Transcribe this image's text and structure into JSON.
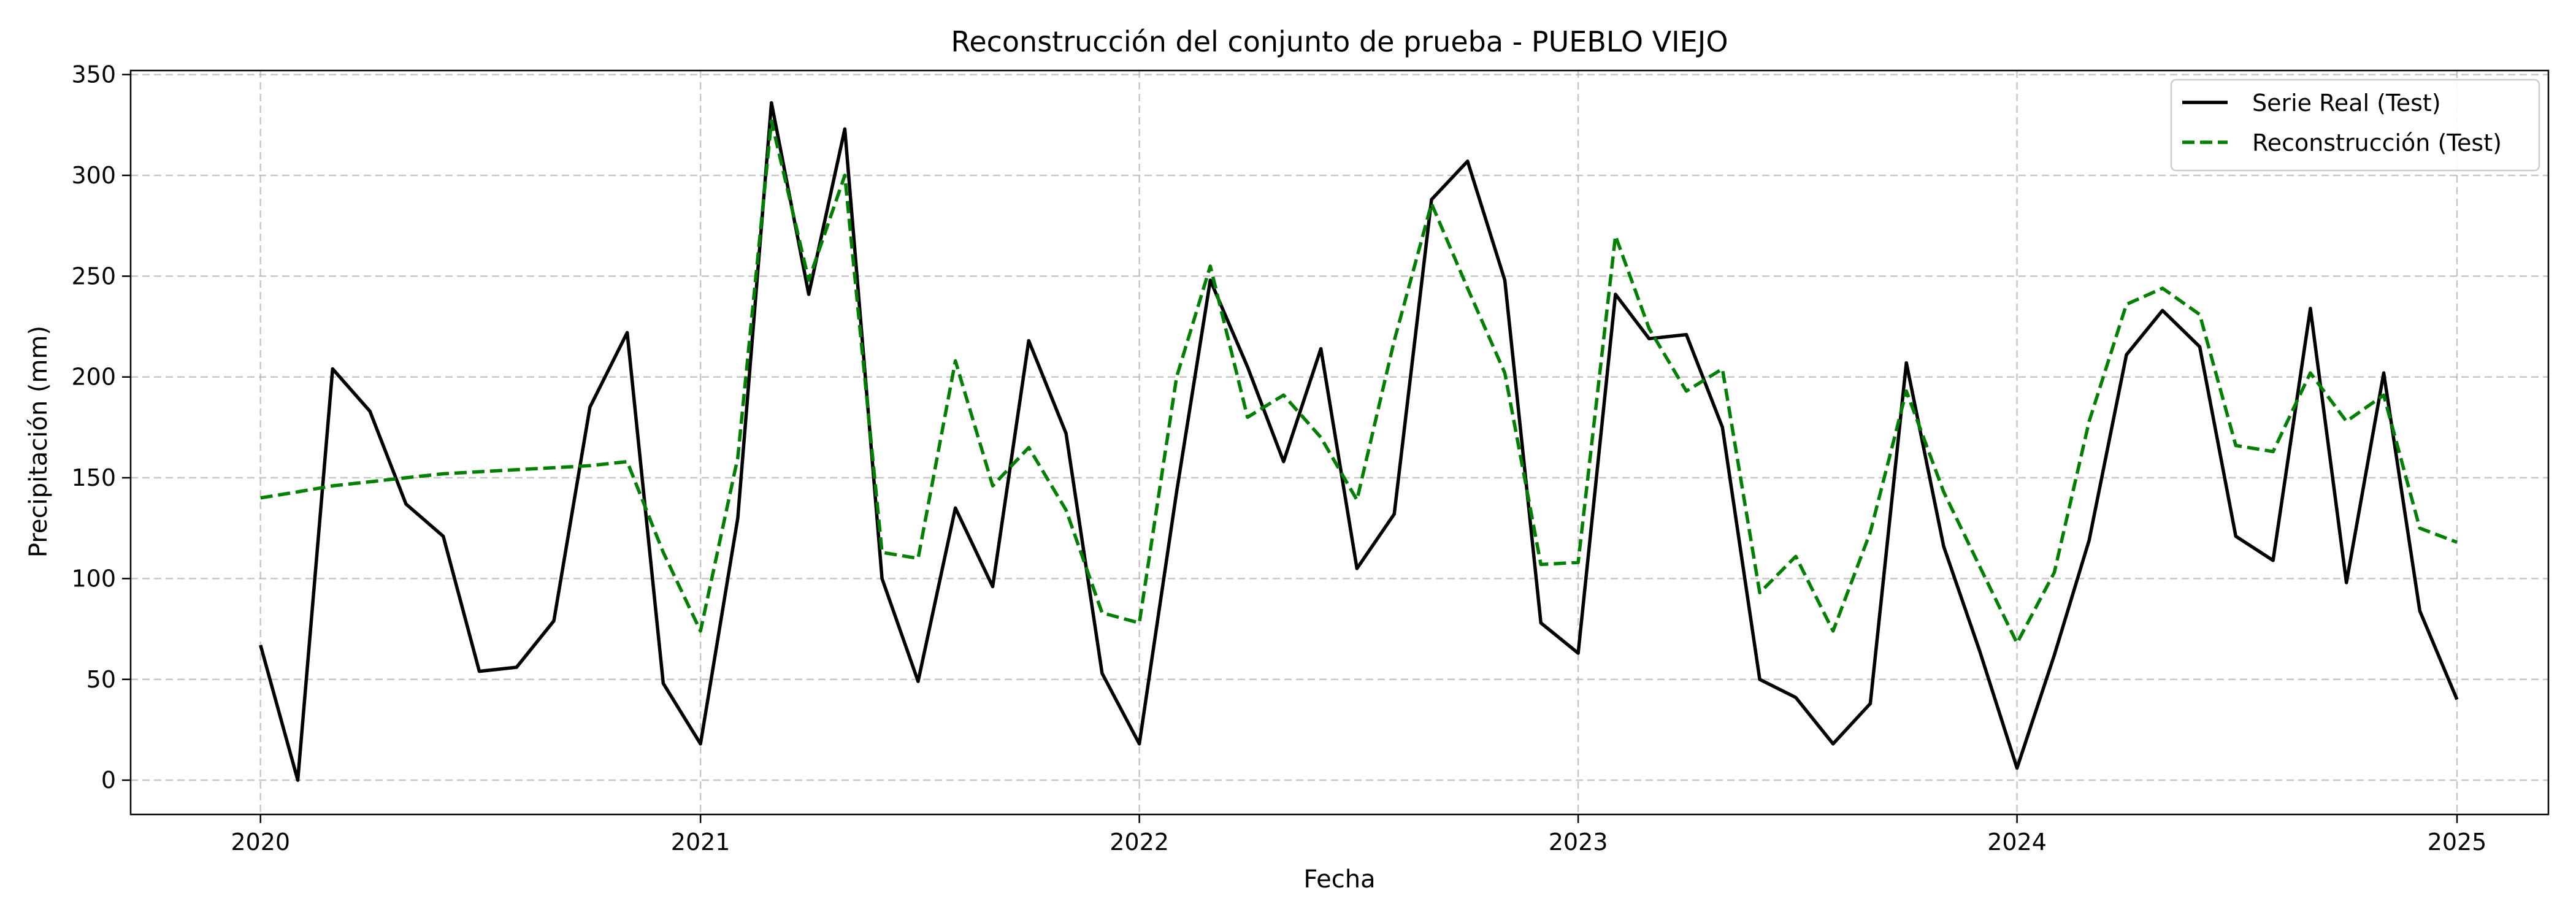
{
  "chart_data": {
    "type": "line",
    "title": "Reconstrucción del conjunto de prueba - PUEBLO VIEJO",
    "xlabel": "Fecha",
    "ylabel": "Precipitación (mm)",
    "x_axis": {
      "type": "date",
      "range": [
        "2019-09-15",
        "2025-03-18"
      ],
      "ticks": [
        "2020",
        "2021",
        "2022",
        "2023",
        "2024",
        "2025"
      ],
      "tick_dates": [
        "2020-01-01",
        "2021-01-01",
        "2022-01-01",
        "2023-01-01",
        "2024-01-01",
        "2025-01-01"
      ]
    },
    "ylim": [
      -17,
      352
    ],
    "yticks": [
      0,
      50,
      100,
      150,
      200,
      250,
      300,
      350
    ],
    "grid": true,
    "legend_position": "upper right",
    "x": [
      "2020-01",
      "2020-02",
      "2020-03",
      "2020-04",
      "2020-05",
      "2020-06",
      "2020-07",
      "2020-08",
      "2020-09",
      "2020-10",
      "2020-11",
      "2020-12",
      "2021-01",
      "2021-02",
      "2021-03",
      "2021-04",
      "2021-05",
      "2021-06",
      "2021-07",
      "2021-08",
      "2021-09",
      "2021-10",
      "2021-11",
      "2021-12",
      "2022-01",
      "2022-02",
      "2022-03",
      "2022-04",
      "2022-05",
      "2022-06",
      "2022-07",
      "2022-08",
      "2022-09",
      "2022-10",
      "2022-11",
      "2022-12",
      "2023-01",
      "2023-02",
      "2023-03",
      "2023-04",
      "2023-05",
      "2023-06",
      "2023-07",
      "2023-08",
      "2023-09",
      "2023-10",
      "2023-11",
      "2023-12",
      "2024-01",
      "2024-02",
      "2024-03",
      "2024-04",
      "2024-05",
      "2024-06",
      "2024-07",
      "2024-08",
      "2024-09",
      "2024-10",
      "2024-11",
      "2024-12",
      "2025-01"
    ],
    "series": [
      {
        "name": "Serie Real (Test)",
        "color": "#000000",
        "style": "solid",
        "values": [
          67,
          0,
          204,
          183,
          137,
          121,
          54,
          56,
          79,
          185,
          222,
          48,
          18,
          130,
          336,
          241,
          323,
          100,
          49,
          135,
          96,
          218,
          172,
          53,
          18,
          143,
          248,
          205,
          158,
          214,
          105,
          132,
          288,
          307,
          248,
          78,
          63,
          241,
          219,
          221,
          175,
          50,
          41,
          18,
          38,
          207,
          116,
          64,
          6,
          62,
          119,
          211,
          233,
          215,
          121,
          109,
          234,
          98,
          202,
          84,
          40
        ]
      },
      {
        "name": "Reconstrucción (Test)",
        "color": "#008000",
        "style": "dashed",
        "values": [
          140,
          143,
          146,
          148,
          150,
          152,
          153,
          154,
          155,
          156,
          158,
          113,
          74,
          160,
          327,
          248,
          300,
          113,
          110,
          208,
          146,
          165,
          134,
          83,
          78,
          200,
          255,
          180,
          191,
          170,
          139,
          218,
          286,
          244,
          202,
          107,
          108,
          270,
          224,
          193,
          204,
          93,
          111,
          74,
          123,
          193,
          143,
          106,
          68,
          103,
          178,
          236,
          244,
          231,
          166,
          163,
          202,
          178,
          191,
          125,
          118
        ]
      }
    ]
  }
}
